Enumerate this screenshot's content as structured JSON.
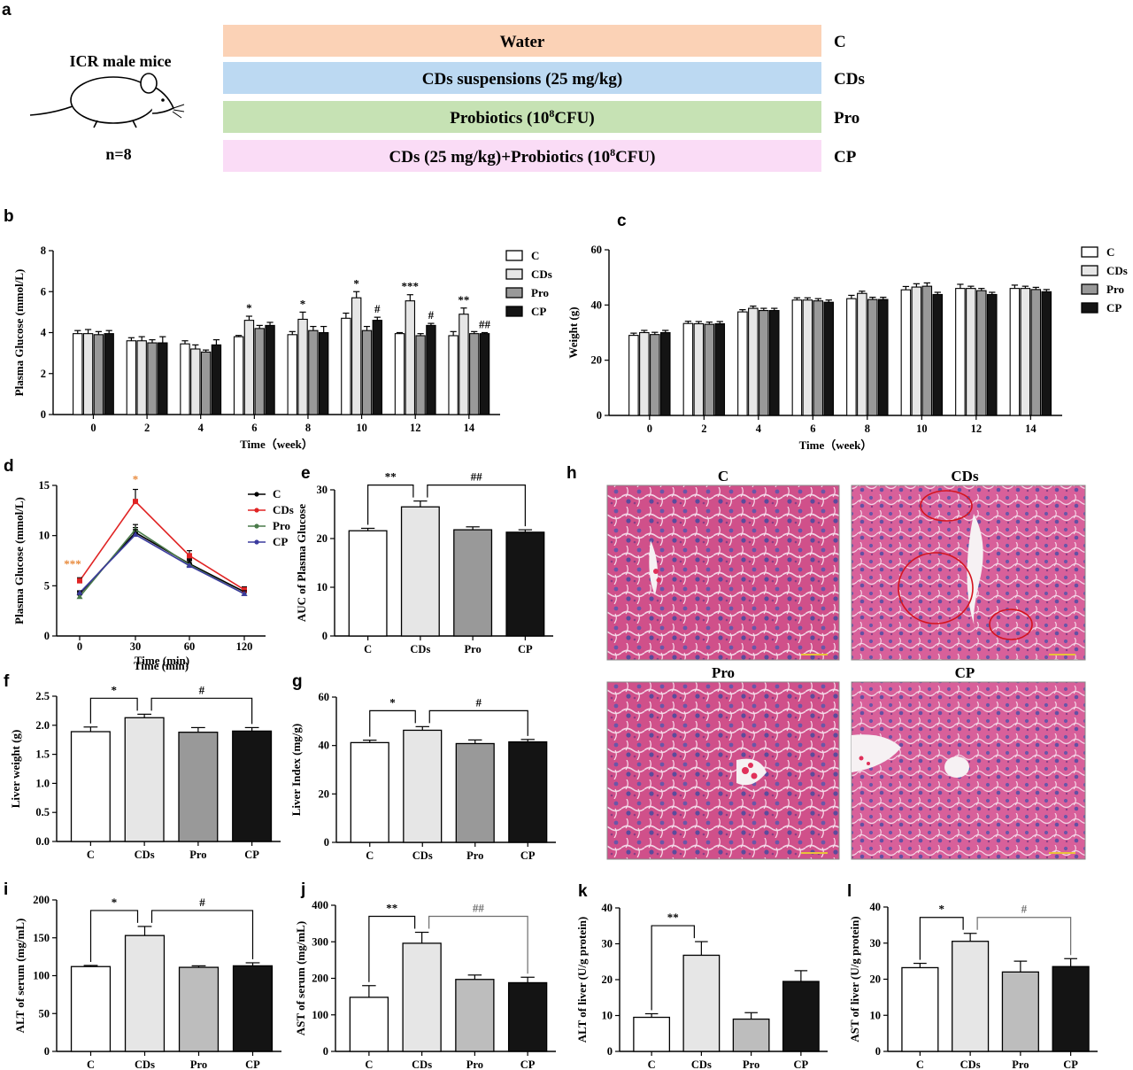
{
  "panel_letters": [
    "a",
    "b",
    "c",
    "d",
    "e",
    "f",
    "g",
    "h",
    "i",
    "j",
    "k",
    "l"
  ],
  "design": {
    "subject": "ICR male mice",
    "n": "n=8",
    "groups": [
      {
        "label": "Water",
        "sup": "",
        "label_after": "",
        "code": "C",
        "color": "#fbd2b6"
      },
      {
        "label": "CDs suspensions (25 mg/kg)",
        "sup": "",
        "label_after": "",
        "code": "CDs",
        "color": "#bcd9f2"
      },
      {
        "label": "Probiotics (10",
        "sup": "8",
        "label_after": "CFU)",
        "code": "Pro",
        "color": "#c6e2b4"
      },
      {
        "label": "CDs (25 mg/kg)+Probiotics (10",
        "sup": "8",
        "label_after": "CFU)",
        "code": "CP",
        "color": "#fadcf6"
      }
    ]
  },
  "group_colors": {
    "C": "#ffffff",
    "CDs": "#e6e6e6",
    "Pro": "#999999",
    "CP": "#141414"
  },
  "line_colors": {
    "C": "#000000",
    "CDs": "#e02424",
    "Pro": "#4a7a4a",
    "CP": "#3b3b9e"
  },
  "histology": {
    "titles": [
      "C",
      "CDs",
      "Pro",
      "CP"
    ],
    "stain_color": "#d0508a"
  },
  "chart_data": [
    {
      "id": "b",
      "type": "bar",
      "categories": [
        "0",
        "2",
        "4",
        "6",
        "8",
        "10",
        "12",
        "14"
      ],
      "xlabel": "Time（week）",
      "ylabel": "Plasma Glucose (mmol/L)",
      "ylim": [
        0,
        8
      ],
      "yticks": [
        "0",
        "2",
        "4",
        "6",
        "8"
      ],
      "legend": "right",
      "series": [
        {
          "name": "C",
          "values": [
            3.95,
            3.6,
            3.45,
            3.8,
            3.9,
            4.7,
            3.95,
            3.85
          ],
          "err": [
            0.15,
            0.15,
            0.15,
            0.06,
            0.15,
            0.25,
            0.05,
            0.2
          ]
        },
        {
          "name": "CDs",
          "values": [
            3.95,
            3.6,
            3.2,
            4.6,
            4.65,
            5.7,
            5.55,
            4.9
          ],
          "err": [
            0.2,
            0.2,
            0.2,
            0.2,
            0.35,
            0.3,
            0.3,
            0.3
          ]
        },
        {
          "name": "Pro",
          "values": [
            3.9,
            3.5,
            3.05,
            4.2,
            4.1,
            4.1,
            3.85,
            3.95
          ],
          "err": [
            0.15,
            0.15,
            0.1,
            0.15,
            0.2,
            0.2,
            0.1,
            0.1
          ]
        },
        {
          "name": "CP",
          "values": [
            3.95,
            3.5,
            3.4,
            4.35,
            4.0,
            4.6,
            4.35,
            3.95
          ],
          "err": [
            0.15,
            0.3,
            0.25,
            0.15,
            0.3,
            0.15,
            0.1,
            0.05
          ]
        }
      ],
      "annotations": [
        {
          "cat": "6",
          "series": "CDs",
          "text": "*"
        },
        {
          "cat": "8",
          "series": "CDs",
          "text": "*"
        },
        {
          "cat": "10",
          "series": "CDs",
          "text": "*"
        },
        {
          "cat": "10",
          "series": "CP",
          "text": "#"
        },
        {
          "cat": "12",
          "series": "CDs",
          "text": "***"
        },
        {
          "cat": "12",
          "series": "CP",
          "text": "#"
        },
        {
          "cat": "14",
          "series": "CDs",
          "text": "**"
        },
        {
          "cat": "14",
          "series": "CP",
          "text": "##"
        }
      ]
    },
    {
      "id": "c",
      "type": "bar",
      "categories": [
        "0",
        "2",
        "4",
        "6",
        "8",
        "10",
        "12",
        "14"
      ],
      "xlabel": "Time（week）",
      "ylabel": "Weight (g)",
      "ylim": [
        0,
        60
      ],
      "yticks": [
        "0",
        "20",
        "40",
        "60"
      ],
      "legend": "right",
      "series": [
        {
          "name": "C",
          "values": [
            29,
            33.3,
            37.5,
            41.8,
            42.3,
            45.5,
            46,
            46
          ],
          "err": [
            0.8,
            0.8,
            0.8,
            0.8,
            1.2,
            1.2,
            1.5,
            1.2
          ]
        },
        {
          "name": "CDs",
          "values": [
            30,
            33.2,
            38.8,
            41.8,
            44.2,
            46.5,
            46,
            46
          ],
          "err": [
            0.8,
            0.8,
            0.8,
            0.8,
            0.8,
            1.2,
            0.8,
            0.8
          ]
        },
        {
          "name": "Pro",
          "values": [
            29.3,
            33,
            38,
            41.5,
            42,
            46.8,
            45.2,
            45.6
          ],
          "err": [
            0.8,
            0.8,
            0.8,
            0.8,
            0.8,
            1.2,
            0.8,
            0.8
          ]
        },
        {
          "name": "CP",
          "values": [
            30,
            33.2,
            38,
            41,
            42,
            43.8,
            43.8,
            44.8
          ],
          "err": [
            0.8,
            0.8,
            0.8,
            0.8,
            0.8,
            0.8,
            0.8,
            0.8
          ]
        }
      ]
    },
    {
      "id": "d",
      "type": "line",
      "x": [
        "0",
        "30",
        "60",
        "120"
      ],
      "xlabel": "Time (min)",
      "ylabel": "Plasma Glucose (mmol/L)",
      "ylim": [
        0,
        15
      ],
      "yticks": [
        "0",
        "5",
        "10",
        "15"
      ],
      "legend": "right",
      "series": [
        {
          "name": "C",
          "values": [
            4.2,
            10.3,
            7.2,
            4.4
          ],
          "err": [
            0.2,
            0.5,
            0.5,
            0.3
          ]
        },
        {
          "name": "CDs",
          "values": [
            5.5,
            13.4,
            8.0,
            4.6
          ],
          "err": [
            0.3,
            1.2,
            0.5,
            0.3
          ]
        },
        {
          "name": "Pro",
          "values": [
            3.9,
            10.6,
            7.1,
            4.2
          ],
          "err": [
            0.2,
            0.5,
            0.5,
            0.3
          ]
        },
        {
          "name": "CP",
          "values": [
            4.3,
            10.1,
            7.0,
            4.2
          ],
          "err": [
            0.2,
            0.5,
            0.5,
            0.3
          ]
        }
      ],
      "annotations": [
        {
          "x": "0",
          "text": "***",
          "color": "#e8893a"
        },
        {
          "x": "30",
          "text": "*",
          "color": "#e8893a"
        }
      ]
    },
    {
      "id": "e",
      "type": "bar",
      "categories": [
        "C",
        "CDs",
        "Pro",
        "CP"
      ],
      "ylabel": "AUC of Plasma Glucose",
      "ylim": [
        0,
        30
      ],
      "yticks": [
        "0",
        "10",
        "20",
        "30"
      ],
      "values": [
        21.6,
        26.5,
        21.8,
        21.3
      ],
      "err": [
        0.5,
        1.2,
        0.6,
        0.5
      ],
      "brackets": [
        {
          "from": 0,
          "to": 1,
          "text": "**",
          "color": "#000000"
        },
        {
          "from": 1,
          "to": 3,
          "text": "##",
          "color": "#000000"
        }
      ]
    },
    {
      "id": "f",
      "type": "bar",
      "categories": [
        "C",
        "CDs",
        "Pro",
        "CP"
      ],
      "ylabel": "Liver weight (g)",
      "ylim": [
        0,
        2.5
      ],
      "yticks": [
        "0.0",
        "0.5",
        "1.0",
        "1.5",
        "2.0",
        "2.5"
      ],
      "values": [
        1.89,
        2.13,
        1.88,
        1.9
      ],
      "err": [
        0.08,
        0.06,
        0.08,
        0.06
      ],
      "brackets": [
        {
          "from": 0,
          "to": 1,
          "text": "*",
          "color": "#000000"
        },
        {
          "from": 1,
          "to": 3,
          "text": "#",
          "color": "#000000"
        }
      ]
    },
    {
      "id": "g",
      "type": "bar",
      "categories": [
        "C",
        "CDs",
        "Pro",
        "CP"
      ],
      "ylabel": "Liver Index (mg/g)",
      "ylim": [
        0,
        60
      ],
      "yticks": [
        "0",
        "20",
        "40",
        "60"
      ],
      "values": [
        41.2,
        46.3,
        40.8,
        41.5
      ],
      "err": [
        1.0,
        1.5,
        1.5,
        1.0
      ],
      "brackets": [
        {
          "from": 0,
          "to": 1,
          "text": "*",
          "color": "#000000"
        },
        {
          "from": 1,
          "to": 3,
          "text": "#",
          "color": "#000000"
        }
      ]
    },
    {
      "id": "i",
      "type": "bar",
      "categories": [
        "C",
        "CDs",
        "Pro",
        "CP"
      ],
      "ylabel": "ALT of serum (mg/mL)",
      "ylim": [
        0,
        200
      ],
      "yticks": [
        "0",
        "50",
        "100",
        "150",
        "200"
      ],
      "values": [
        112,
        153,
        111,
        113
      ],
      "err": [
        1.5,
        12,
        2,
        4
      ],
      "colors": [
        "#ffffff",
        "#e6e6e6",
        "#bdbdbd",
        "#141414"
      ],
      "brackets": [
        {
          "from": 0,
          "to": 1,
          "text": "*",
          "color": "#000000"
        },
        {
          "from": 1,
          "to": 3,
          "text": "#",
          "color": "#000000"
        }
      ]
    },
    {
      "id": "j",
      "type": "bar",
      "categories": [
        "C",
        "CDs",
        "Pro",
        "CP"
      ],
      "ylabel": "AST of serum (mg/mL)",
      "ylim": [
        0,
        400
      ],
      "yticks": [
        "0",
        "100",
        "200",
        "300",
        "400"
      ],
      "values": [
        148,
        296,
        197,
        188
      ],
      "err": [
        32,
        30,
        12,
        15
      ],
      "colors": [
        "#ffffff",
        "#e6e6e6",
        "#bdbdbd",
        "#141414"
      ],
      "brackets": [
        {
          "from": 0,
          "to": 1,
          "text": "**",
          "color": "#000000"
        },
        {
          "from": 1,
          "to": 3,
          "text": "##",
          "color": "#6d6d6d"
        }
      ]
    },
    {
      "id": "k",
      "type": "bar",
      "categories": [
        "C",
        "CDs",
        "Pro",
        "CP"
      ],
      "ylabel": "ALT of liver (U/g protein)",
      "ylim": [
        0,
        40
      ],
      "yticks": [
        "0",
        "10",
        "20",
        "30",
        "40"
      ],
      "values": [
        9.5,
        26.8,
        9.0,
        19.5
      ],
      "err": [
        1.0,
        3.8,
        1.8,
        3.0
      ],
      "colors": [
        "#ffffff",
        "#e6e6e6",
        "#bdbdbd",
        "#141414"
      ],
      "brackets": [
        {
          "from": 0,
          "to": 1,
          "text": "**",
          "color": "#000000"
        }
      ]
    },
    {
      "id": "l",
      "type": "bar",
      "categories": [
        "C",
        "CDs",
        "Pro",
        "CP"
      ],
      "ylabel": "AST of liver (U/g protein)",
      "ylim": [
        0,
        40
      ],
      "yticks": [
        "0",
        "10",
        "20",
        "30",
        "40"
      ],
      "values": [
        23.2,
        30.5,
        22.0,
        23.5
      ],
      "err": [
        1.2,
        2.2,
        3.0,
        2.2
      ],
      "colors": [
        "#ffffff",
        "#e6e6e6",
        "#bdbdbd",
        "#141414"
      ],
      "brackets": [
        {
          "from": 0,
          "to": 1,
          "text": "*",
          "color": "#000000"
        },
        {
          "from": 1,
          "to": 3,
          "text": "#",
          "color": "#6d6d6d"
        }
      ]
    }
  ]
}
